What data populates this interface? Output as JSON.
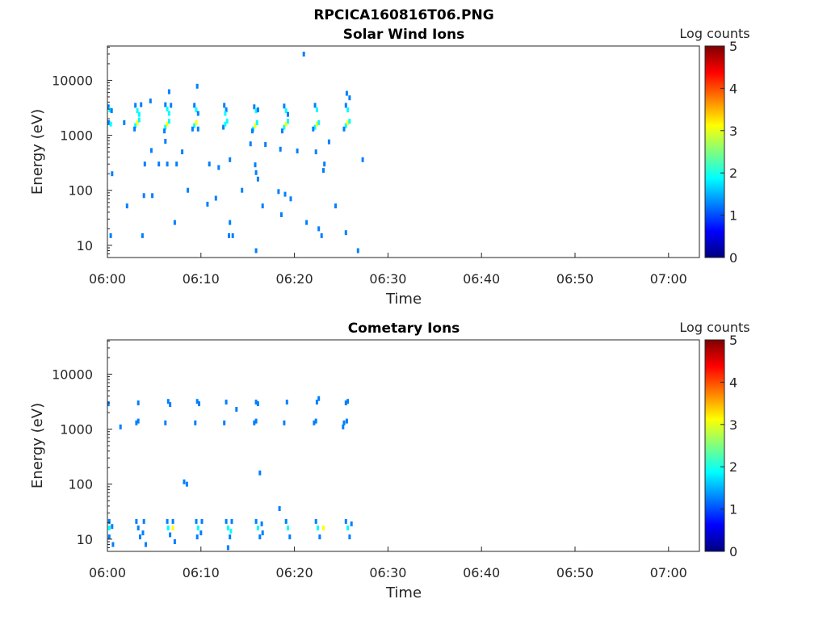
{
  "figure_title": "RPCICA160816T06.PNG",
  "colors": {
    "axis": "#262626",
    "colormap": [
      "#00007f",
      "#0000ff",
      "#007fff",
      "#00ffff",
      "#7fff7f",
      "#ffff00",
      "#ff7f00",
      "#ff0000",
      "#7f0000"
    ]
  },
  "chart_data": [
    {
      "type": "heatmap",
      "title": "Solar Wind Ions",
      "xlabel": "Time",
      "ylabel": "Energy (eV)",
      "x_ticks": [
        "06:00",
        "06:10",
        "06:20",
        "06:30",
        "06:40",
        "06:50",
        "07:00"
      ],
      "x_tick_minutes": [
        0,
        10,
        20,
        30,
        40,
        50,
        60
      ],
      "xlim_minutes": [
        0,
        63.3
      ],
      "ylim": [
        6,
        42000
      ],
      "y_scale": "log",
      "y_ticks": [
        10,
        100,
        1000,
        10000
      ],
      "y_tick_labels": [
        "10",
        "100",
        "1000",
        "10000"
      ],
      "colorbar": {
        "label": "Log counts",
        "range": [
          0,
          5
        ],
        "ticks": [
          "0",
          "1",
          "2",
          "3",
          "4",
          "5"
        ]
      },
      "cells": [
        [
          0.1,
          3300,
          1
        ],
        [
          0.25,
          2900,
          2
        ],
        [
          0.45,
          2800,
          1
        ],
        [
          0.15,
          1700,
          1
        ],
        [
          0.35,
          1600,
          2
        ],
        [
          3.0,
          3500,
          1
        ],
        [
          3.2,
          2800,
          2
        ],
        [
          3.4,
          2400,
          2
        ],
        [
          3.6,
          3600,
          1
        ],
        [
          3.0,
          1500,
          2
        ],
        [
          3.2,
          1700,
          3
        ],
        [
          3.4,
          1900,
          2
        ],
        [
          2.9,
          1300,
          1
        ],
        [
          6.2,
          3600,
          1
        ],
        [
          6.4,
          3000,
          2
        ],
        [
          6.6,
          2500,
          2
        ],
        [
          6.8,
          3500,
          1
        ],
        [
          6.2,
          1400,
          2
        ],
        [
          6.4,
          1600,
          3
        ],
        [
          6.6,
          1800,
          2
        ],
        [
          6.1,
          1200,
          1
        ],
        [
          9.3,
          3500,
          1
        ],
        [
          9.5,
          2900,
          2
        ],
        [
          9.7,
          2500,
          1
        ],
        [
          9.3,
          1500,
          2
        ],
        [
          9.5,
          1700,
          3
        ],
        [
          9.1,
          1300,
          1
        ],
        [
          9.7,
          1300,
          1
        ],
        [
          12.5,
          3500,
          1
        ],
        [
          12.7,
          2900,
          1
        ],
        [
          12.6,
          2500,
          2
        ],
        [
          12.4,
          1400,
          1
        ],
        [
          12.6,
          1600,
          2
        ],
        [
          12.8,
          1800,
          2
        ],
        [
          15.7,
          3300,
          1
        ],
        [
          15.9,
          2800,
          2
        ],
        [
          16.1,
          2900,
          1
        ],
        [
          15.6,
          1300,
          2
        ],
        [
          15.8,
          1500,
          3
        ],
        [
          16.0,
          1700,
          2
        ],
        [
          15.5,
          1200,
          1
        ],
        [
          18.9,
          3400,
          1
        ],
        [
          19.1,
          2800,
          2
        ],
        [
          19.3,
          2400,
          1
        ],
        [
          18.9,
          1400,
          2
        ],
        [
          19.1,
          1600,
          3
        ],
        [
          19.3,
          1800,
          2
        ],
        [
          18.7,
          1200,
          1
        ],
        [
          22.2,
          3500,
          1
        ],
        [
          22.4,
          2900,
          2
        ],
        [
          22.2,
          1400,
          2
        ],
        [
          22.4,
          1600,
          3
        ],
        [
          22.6,
          1700,
          2
        ],
        [
          22.0,
          1300,
          1
        ],
        [
          25.5,
          3500,
          1
        ],
        [
          25.7,
          2900,
          2
        ],
        [
          25.5,
          1500,
          2
        ],
        [
          25.7,
          1700,
          3
        ],
        [
          25.9,
          1800,
          2
        ],
        [
          25.3,
          1300,
          1
        ],
        [
          0.35,
          15,
          1
        ],
        [
          3.75,
          15,
          1
        ],
        [
          13.0,
          15,
          1
        ],
        [
          13.4,
          15,
          1
        ],
        [
          15.9,
          8,
          1
        ],
        [
          25.5,
          17,
          1
        ],
        [
          26.8,
          8,
          1
        ],
        [
          7.2,
          26,
          1
        ],
        [
          13.1,
          26,
          1
        ],
        [
          21.3,
          26,
          1
        ],
        [
          22.6,
          20,
          1
        ],
        [
          22.9,
          15,
          1
        ],
        [
          0.5,
          200,
          1
        ],
        [
          2.1,
          52,
          1
        ],
        [
          3.9,
          80,
          1
        ],
        [
          4.8,
          80,
          1
        ],
        [
          8.6,
          100,
          1
        ],
        [
          10.7,
          56,
          1
        ],
        [
          11.6,
          72,
          1
        ],
        [
          14.4,
          100,
          1
        ],
        [
          16.6,
          52,
          1
        ],
        [
          18.3,
          95,
          1
        ],
        [
          18.6,
          36,
          1
        ],
        [
          19.0,
          85,
          1
        ],
        [
          19.6,
          70,
          1
        ],
        [
          24.4,
          52,
          1
        ],
        [
          4.0,
          300,
          1
        ],
        [
          5.5,
          300,
          1
        ],
        [
          6.4,
          300,
          1
        ],
        [
          7.4,
          300,
          1
        ],
        [
          10.9,
          300,
          1
        ],
        [
          11.9,
          260,
          1
        ],
        [
          13.1,
          360,
          1
        ],
        [
          15.8,
          290,
          1
        ],
        [
          15.9,
          210,
          1
        ],
        [
          16.1,
          160,
          1
        ],
        [
          23.2,
          300,
          1
        ],
        [
          23.1,
          230,
          1
        ],
        [
          27.3,
          360,
          1
        ],
        [
          4.7,
          530,
          1
        ],
        [
          6.2,
          780,
          1
        ],
        [
          8.0,
          500,
          1
        ],
        [
          15.3,
          700,
          1
        ],
        [
          16.9,
          680,
          1
        ],
        [
          18.5,
          560,
          1
        ],
        [
          20.3,
          520,
          1
        ],
        [
          22.3,
          500,
          1
        ],
        [
          23.7,
          760,
          1
        ],
        [
          4.6,
          4200,
          1
        ],
        [
          6.6,
          6200,
          1
        ],
        [
          9.6,
          7800,
          1
        ],
        [
          21.0,
          30000,
          1
        ],
        [
          25.6,
          5800,
          1
        ],
        [
          25.9,
          4800,
          1
        ],
        [
          1.8,
          1700,
          1
        ]
      ]
    },
    {
      "type": "heatmap",
      "title": "Cometary Ions",
      "xlabel": "Time",
      "ylabel": "Energy (eV)",
      "x_ticks": [
        "06:00",
        "06:10",
        "06:20",
        "06:30",
        "06:40",
        "06:50",
        "07:00"
      ],
      "x_tick_minutes": [
        0,
        10,
        20,
        30,
        40,
        50,
        60
      ],
      "xlim_minutes": [
        0,
        63.3
      ],
      "ylim": [
        6,
        42000
      ],
      "y_scale": "log",
      "y_ticks": [
        10,
        100,
        1000,
        10000
      ],
      "y_tick_labels": [
        "10",
        "100",
        "1000",
        "10000"
      ],
      "colorbar": {
        "label": "Log counts",
        "range": [
          0,
          5
        ],
        "ticks": [
          "0",
          "1",
          "2",
          "3",
          "4",
          "5"
        ]
      },
      "cells": [
        [
          0.1,
          2900,
          1
        ],
        [
          3.3,
          3000,
          1
        ],
        [
          6.5,
          3200,
          1
        ],
        [
          6.7,
          2800,
          1
        ],
        [
          9.6,
          3200,
          1
        ],
        [
          9.8,
          2900,
          1
        ],
        [
          12.7,
          3100,
          1
        ],
        [
          15.9,
          3100,
          1
        ],
        [
          16.1,
          2900,
          1
        ],
        [
          19.2,
          3100,
          1
        ],
        [
          22.4,
          3100,
          1
        ],
        [
          22.6,
          3600,
          1
        ],
        [
          25.5,
          3000,
          1
        ],
        [
          25.7,
          3200,
          1
        ],
        [
          13.8,
          2300,
          1
        ],
        [
          1.4,
          1100,
          1
        ],
        [
          3.1,
          1300,
          1
        ],
        [
          3.3,
          1400,
          1
        ],
        [
          6.2,
          1300,
          1
        ],
        [
          9.4,
          1300,
          1
        ],
        [
          12.5,
          1300,
          1
        ],
        [
          15.7,
          1300,
          1
        ],
        [
          15.9,
          1400,
          1
        ],
        [
          18.9,
          1300,
          1
        ],
        [
          22.1,
          1300,
          1
        ],
        [
          22.3,
          1400,
          1
        ],
        [
          25.3,
          1300,
          1
        ],
        [
          25.6,
          1400,
          1
        ],
        [
          25.2,
          1100,
          1
        ],
        [
          8.2,
          110,
          1
        ],
        [
          8.5,
          100,
          1
        ],
        [
          16.3,
          160,
          1
        ],
        [
          18.4,
          36,
          1
        ],
        [
          12.9,
          7,
          1
        ],
        [
          0.2,
          21,
          1
        ],
        [
          0.2,
          16,
          2
        ],
        [
          0.2,
          11,
          1
        ],
        [
          0.5,
          17,
          1
        ],
        [
          0.6,
          8,
          1
        ],
        [
          3.1,
          21,
          1
        ],
        [
          3.3,
          16,
          1
        ],
        [
          3.5,
          11,
          1
        ],
        [
          3.9,
          21,
          1
        ],
        [
          3.8,
          13,
          1
        ],
        [
          4.1,
          8,
          1
        ],
        [
          6.4,
          21,
          1
        ],
        [
          6.5,
          16,
          2
        ],
        [
          6.7,
          12,
          1
        ],
        [
          7.0,
          21,
          1
        ],
        [
          7.0,
          16,
          3
        ],
        [
          7.2,
          9,
          1
        ],
        [
          9.5,
          21,
          1
        ],
        [
          9.7,
          16,
          2
        ],
        [
          9.6,
          11,
          1
        ],
        [
          10.1,
          21,
          1
        ],
        [
          10.0,
          13,
          1
        ],
        [
          12.7,
          21,
          1
        ],
        [
          12.9,
          16,
          2
        ],
        [
          13.1,
          11,
          1
        ],
        [
          13.3,
          21,
          1
        ],
        [
          13.2,
          14,
          2
        ],
        [
          15.9,
          21,
          1
        ],
        [
          16.1,
          16,
          2
        ],
        [
          16.3,
          11,
          1
        ],
        [
          16.5,
          19,
          1
        ],
        [
          16.6,
          13,
          1
        ],
        [
          19.1,
          21,
          1
        ],
        [
          19.3,
          16,
          2
        ],
        [
          19.5,
          11,
          1
        ],
        [
          22.3,
          21,
          1
        ],
        [
          22.5,
          16,
          2
        ],
        [
          22.7,
          11,
          1
        ],
        [
          23.1,
          16,
          3
        ],
        [
          25.5,
          21,
          1
        ],
        [
          25.7,
          16,
          2
        ],
        [
          25.9,
          11,
          1
        ],
        [
          26.1,
          19,
          1
        ]
      ]
    }
  ]
}
